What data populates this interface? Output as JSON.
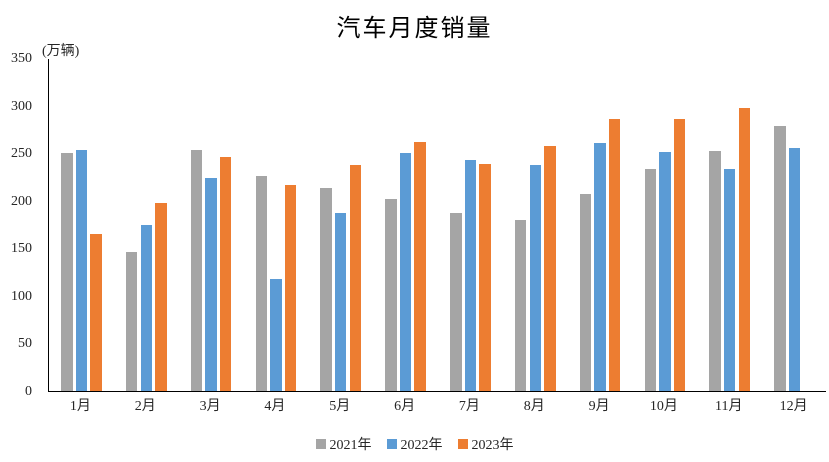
{
  "chart_data": {
    "type": "bar",
    "title": "汽车月度销量",
    "unit_label": "(万辆)",
    "xlabel": "",
    "ylabel": "",
    "categories": [
      "1月",
      "2月",
      "3月",
      "4月",
      "5月",
      "6月",
      "7月",
      "8月",
      "9月",
      "10月",
      "11月",
      "12月"
    ],
    "series": [
      {
        "name": "2021年",
        "color": "#A5A5A5",
        "values": [
          250,
          146,
          253,
          226,
          213,
          202,
          187,
          180,
          207,
          233,
          252,
          279
        ]
      },
      {
        "name": "2022年",
        "color": "#5B9BD5",
        "values": [
          253,
          174,
          224,
          118,
          187,
          250,
          243,
          238,
          261,
          251,
          233,
          255
        ]
      },
      {
        "name": "2023年",
        "color": "#ED7D31",
        "values": [
          165,
          198,
          246,
          217,
          238,
          262,
          239,
          258,
          286,
          286,
          297,
          null
        ]
      }
    ],
    "ylim": [
      0,
      350
    ],
    "y_step": 50,
    "y_ticks": [
      "0",
      "50",
      "100",
      "150",
      "200",
      "250",
      "300",
      "350"
    ],
    "grid": false,
    "legend_position": "bottom"
  }
}
